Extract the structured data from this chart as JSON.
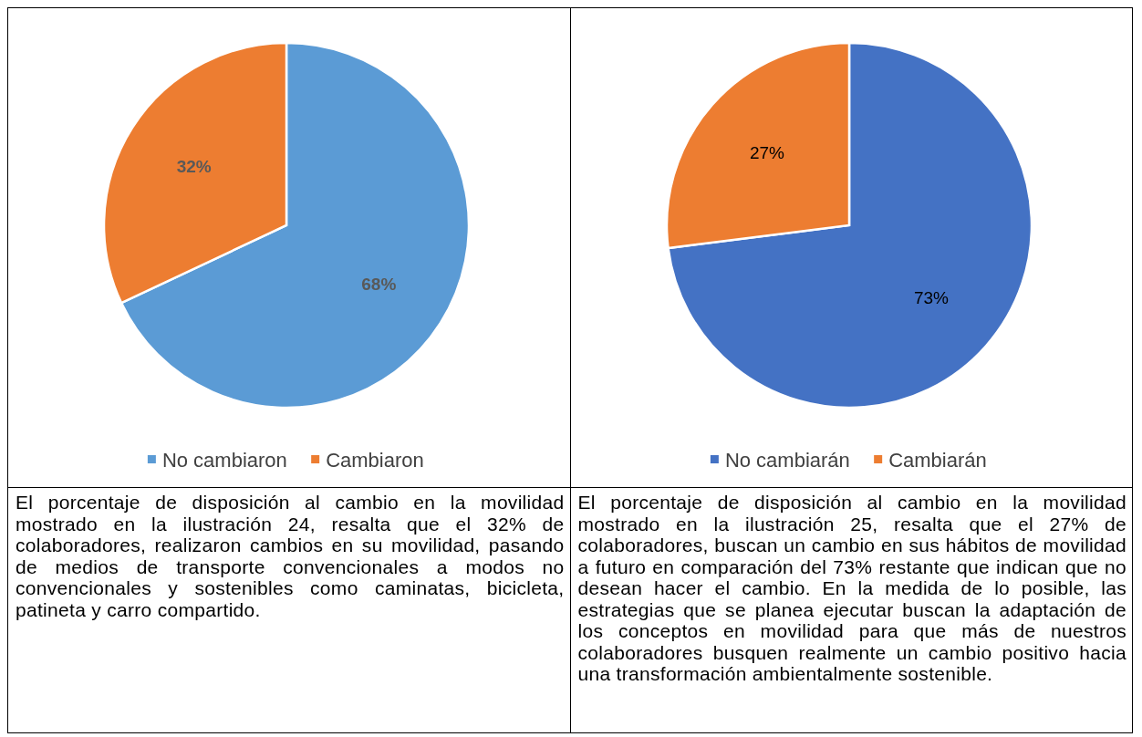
{
  "chart_data": [
    {
      "type": "pie",
      "categories": [
        "No cambiaron",
        "Cambiaron"
      ],
      "values": [
        68,
        32
      ],
      "colors": [
        "#5b9bd5",
        "#ed7d31"
      ],
      "value_labels": [
        "68%",
        "32%"
      ],
      "legend": "bottom",
      "annotations": [
        "El porcentaje de disposición al cambio en la movilidad mostrado en la ilustración 24, resalta que el 32% de colaboradores, realizaron cambios en su movilidad, pasando de medios de transporte convencionales a modos no convencionales y sostenibles como caminatas, bicicleta, patineta y carro compartido."
      ]
    },
    {
      "type": "pie",
      "categories": [
        "No cambiarán",
        "Cambiarán"
      ],
      "values": [
        73,
        27
      ],
      "colors": [
        "#4472c4",
        "#ed7d31"
      ],
      "value_labels": [
        "73%",
        "27%"
      ],
      "legend": "bottom",
      "annotations": [
        "El porcentaje de disposición al cambio en la movilidad mostrado en la ilustración 25, resalta que el 27% de colaboradores, buscan un cambio en sus hábitos de movilidad a futuro en comparación del 73% restante que indican que no desean hacer el cambio. En la medida de lo posible, las estrategias que se planea ejecutar buscan la adaptación de los conceptos en movilidad para que más de nuestros colaboradores busquen realmente un cambio positivo hacia una transformación ambientalmente sostenible."
      ]
    }
  ]
}
